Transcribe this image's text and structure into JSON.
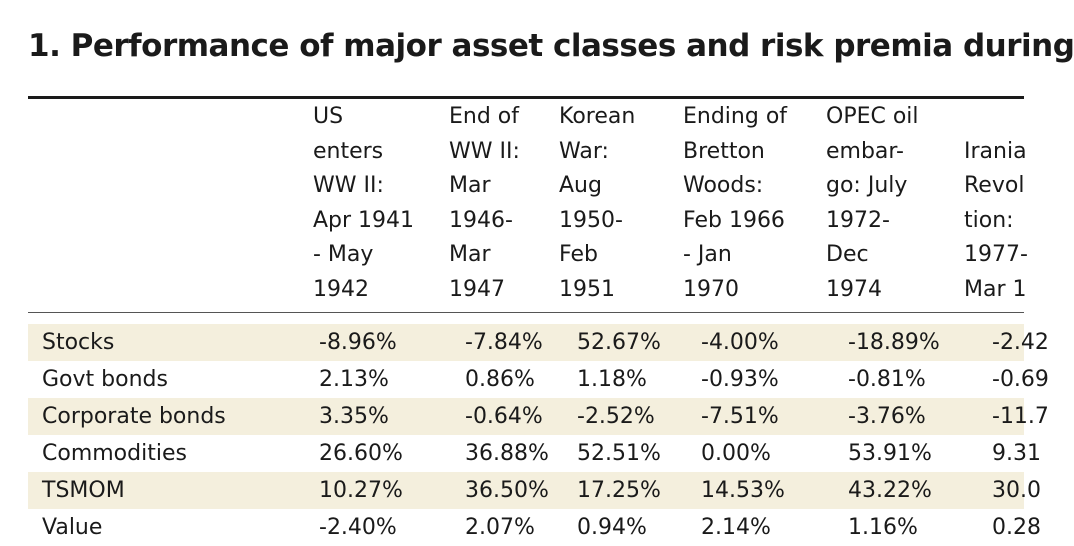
{
  "title": "1. Performance of major asset classes and risk premia during",
  "columns": [
    "US\nenters\nWW II:\nApr 1941\n- May\n1942",
    "End of\nWW II:\nMar\n1946-\nMar\n1947",
    "Korean\nWar:\nAug\n1950-\nFeb\n1951",
    "Ending of\nBretton\nWoods:\nFeb 1966\n- Jan\n1970",
    "OPEC oil\nembar-\ngo: July\n1972-\nDec\n1974",
    "\nIrania\nRevol\ntion:\n1977-\nMar 1"
  ],
  "rows": [
    {
      "label": "Stocks",
      "values": [
        "-8.96%",
        "-7.84%",
        "52.67%",
        "-4.00%",
        "-18.89%",
        "-2.42"
      ]
    },
    {
      "label": "Govt bonds",
      "values": [
        "2.13%",
        "0.86%",
        "1.18%",
        "-0.93%",
        "-0.81%",
        "-0.69"
      ]
    },
    {
      "label": "Corporate bonds",
      "values": [
        "3.35%",
        "-0.64%",
        "-2.52%",
        "-7.51%",
        "-3.76%",
        "-11.7"
      ]
    },
    {
      "label": "Commodities",
      "values": [
        "26.60%",
        "36.88%",
        "52.51%",
        "0.00%",
        "53.91%",
        "9.31"
      ]
    },
    {
      "label": "TSMOM",
      "values": [
        "10.27%",
        "36.50%",
        "17.25%",
        "14.53%",
        "43.22%",
        "30.0"
      ]
    },
    {
      "label": "Value",
      "values": [
        "-2.40%",
        "2.07%",
        "0.94%",
        "2.14%",
        "1.16%",
        "0.28"
      ]
    }
  ]
}
